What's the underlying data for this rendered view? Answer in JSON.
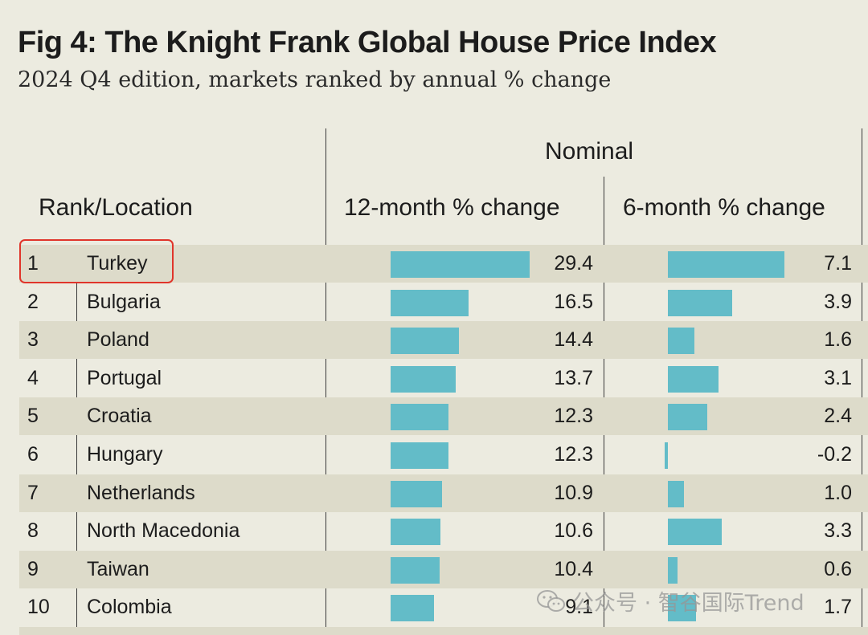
{
  "chart_data": {
    "type": "table",
    "title": "Fig 4: The Knight Frank Global House Price Index",
    "subtitle": "2024 Q4 edition, markets ranked by annual % change",
    "group_header": "Nominal",
    "columns": [
      "Rank/Location",
      "12-month % change",
      "6-month % change"
    ],
    "rows": [
      {
        "rank": "1",
        "location": "Turkey",
        "m12": "29.4",
        "m6": "7.1"
      },
      {
        "rank": "2",
        "location": "Bulgaria",
        "m12": "16.5",
        "m6": "3.9"
      },
      {
        "rank": "3",
        "location": "Poland",
        "m12": "14.4",
        "m6": "1.6"
      },
      {
        "rank": "4",
        "location": "Portugal",
        "m12": "13.7",
        "m6": "3.1"
      },
      {
        "rank": "5",
        "location": "Croatia",
        "m12": "12.3",
        "m6": "2.4"
      },
      {
        "rank": "6",
        "location": "Hungary",
        "m12": "12.3",
        "m6": "-0.2"
      },
      {
        "rank": "7",
        "location": "Netherlands",
        "m12": "10.9",
        "m6": "1.0"
      },
      {
        "rank": "8",
        "location": "North Macedonia",
        "m12": "10.6",
        "m6": "3.3"
      },
      {
        "rank": "9",
        "location": "Taiwan",
        "m12": "10.4",
        "m6": "0.6"
      },
      {
        "rank": "10",
        "location": "Colombia",
        "m12": "9.1",
        "m6": "1.7"
      }
    ],
    "highlighted_row": "1",
    "bar_color": "#63bcc8"
  },
  "watermark": {
    "text": "公众号 · 智谷国际Trend",
    "icon": "wechat-icon"
  }
}
